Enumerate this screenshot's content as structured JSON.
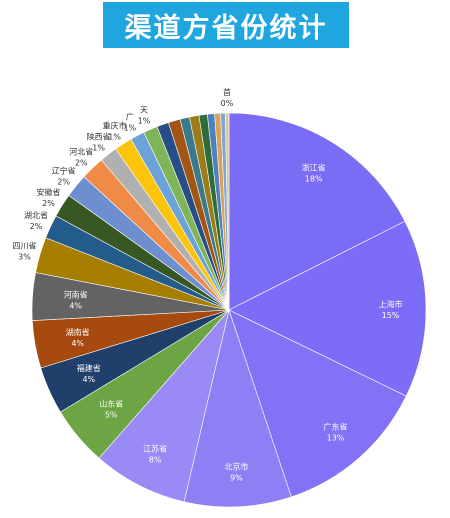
{
  "title": "渠道方省份统计",
  "chart_data": {
    "type": "pie",
    "title": "渠道方省份统计",
    "start_angle": 0,
    "direction": "clockwise",
    "slices": [
      {
        "label": "浙江省",
        "pct_label": "18%",
        "value": 18,
        "color": "#7b6cf6"
      },
      {
        "label": "上海市",
        "pct_label": "15%",
        "value": 15,
        "color": "#7c6cf7"
      },
      {
        "label": "广东省",
        "pct_label": "13%",
        "value": 13,
        "color": "#8472f6"
      },
      {
        "label": "北京市",
        "pct_label": "9%",
        "value": 9,
        "color": "#8f7ff5"
      },
      {
        "label": "江苏省",
        "pct_label": "8%",
        "value": 8,
        "color": "#9a8af6"
      },
      {
        "label": "山东省",
        "pct_label": "5%",
        "value": 5,
        "color": "#6ea544"
      },
      {
        "label": "福建省",
        "pct_label": "4%",
        "value": 4,
        "color": "#203f6a"
      },
      {
        "label": "湖南省",
        "pct_label": "4%",
        "value": 4,
        "color": "#a64a0f"
      },
      {
        "label": "河南省",
        "pct_label": "4%",
        "value": 4,
        "color": "#636363"
      },
      {
        "label": "四川省",
        "pct_label": "3%",
        "value": 3,
        "color": "#a67f00"
      },
      {
        "label": "湖北省",
        "pct_label": "2%",
        "value": 2,
        "color": "#235b8a"
      },
      {
        "label": "安徽省",
        "pct_label": "2%",
        "value": 2,
        "color": "#385723"
      },
      {
        "label": "辽宁省",
        "pct_label": "2%",
        "value": 2,
        "color": "#6d8fd0"
      },
      {
        "label": "河北省",
        "pct_label": "2%",
        "value": 2,
        "color": "#ef8a47"
      },
      {
        "label": "陕西省",
        "pct_label": "1%",
        "value": 1.5,
        "color": "#b0b0b0"
      },
      {
        "label": "重庆市",
        "pct_label": "1%",
        "value": 1.5,
        "color": "#fcc40a"
      },
      {
        "label": "广",
        "pct_label": "1%",
        "value": 1.2,
        "color": "#6ba2d8"
      },
      {
        "label": "天",
        "pct_label": "1%",
        "value": 1.2,
        "color": "#80b459"
      },
      {
        "label": "",
        "pct_label": "",
        "value": 1,
        "color": "#274e86"
      },
      {
        "label": "",
        "pct_label": "",
        "value": 1,
        "color": "#a35614"
      },
      {
        "label": "",
        "pct_label": "",
        "value": 0.8,
        "color": "#3a7a8c"
      },
      {
        "label": "",
        "pct_label": "",
        "value": 0.8,
        "color": "#9c7d1a"
      },
      {
        "label": "",
        "pct_label": "",
        "value": 0.7,
        "color": "#2e6c3a"
      },
      {
        "label": "",
        "pct_label": "",
        "value": 0.6,
        "color": "#4f81bd"
      },
      {
        "label": "",
        "pct_label": "",
        "value": 0.5,
        "color": "#d9a25a"
      },
      {
        "label": "",
        "pct_label": "",
        "value": 0.4,
        "color": "#7fa7d0"
      },
      {
        "label": "首",
        "pct_label": "0%",
        "value": 0.3,
        "color": "#d8c8a0"
      }
    ]
  }
}
